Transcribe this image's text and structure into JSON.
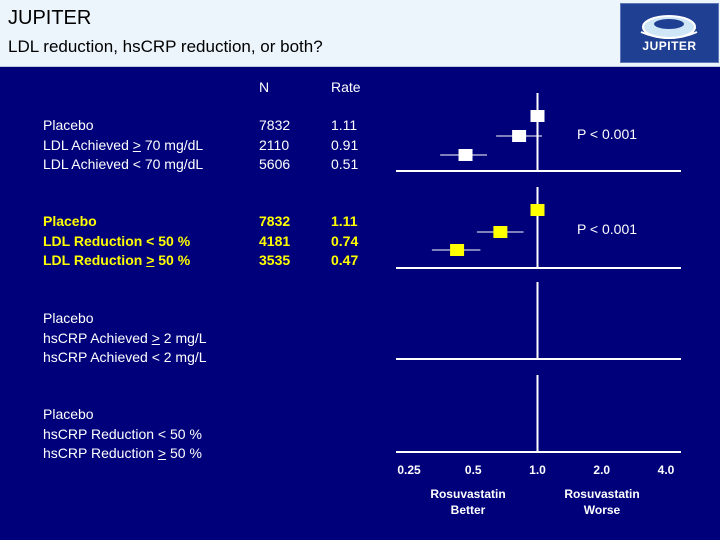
{
  "header": {
    "title": "JUPITER",
    "subtitle": "LDL reduction, hsCRP reduction, or both?",
    "logo_text": "JUPITER"
  },
  "columns": {
    "n": "N",
    "rate": "Rate"
  },
  "colors": {
    "background": "#00007a",
    "header": "#ecf5fb",
    "white_marker": "#ffffff",
    "yellow_marker": "#ffff00"
  },
  "groups": [
    {
      "color": "white",
      "labels": [
        {
          "pre": "Placebo",
          "sym": "",
          "post": ""
        },
        {
          "pre": "LDL Achieved ",
          "sym": ">",
          "post": " 70 mg/dL"
        },
        {
          "pre": "LDL Achieved < 70 mg/dL",
          "sym": "",
          "post": ""
        }
      ],
      "n": [
        "7832",
        "2110",
        "5606"
      ],
      "rate": [
        "1.11",
        "0.91",
        "0.51"
      ],
      "p_value": "P < 0.001"
    },
    {
      "color": "yellow",
      "labels": [
        {
          "pre": "Placebo",
          "sym": "",
          "post": ""
        },
        {
          "pre": "LDL Reduction < 50 %",
          "sym": "",
          "post": ""
        },
        {
          "pre": "LDL Reduction ",
          "sym": ">",
          "post": " 50 %"
        }
      ],
      "n": [
        "7832",
        "4181",
        "3535"
      ],
      "rate": [
        "1.11",
        "0.74",
        "0.47"
      ],
      "p_value": "P < 0.001"
    },
    {
      "color": "white",
      "labels": [
        {
          "pre": "Placebo",
          "sym": "",
          "post": ""
        },
        {
          "pre": "hsCRP Achieved ",
          "sym": ">",
          "post": " 2 mg/L"
        },
        {
          "pre": "hsCRP Achieved < 2 mg/L",
          "sym": "",
          "post": ""
        }
      ]
    },
    {
      "color": "white",
      "labels": [
        {
          "pre": "Placebo",
          "sym": "",
          "post": ""
        },
        {
          "pre": "hsCRP Reduction < 50 %",
          "sym": "",
          "post": ""
        },
        {
          "pre": "hsCRP Reduction ",
          "sym": ">",
          "post": " 50 %"
        }
      ]
    }
  ],
  "chart_data": {
    "type": "scatter",
    "x_scale": "log",
    "x_ticks": [
      "0.25",
      "0.5",
      "1.0",
      "2.0",
      "4.0"
    ],
    "xlim": [
      0.25,
      4.0
    ],
    "reference_line": 1.0,
    "panels": [
      {
        "color": "#ffffff",
        "points": [
          {
            "value": 1.0,
            "ci": [
              1.0,
              1.0
            ]
          },
          {
            "value": 0.82,
            "ci": [
              0.64,
              1.05
            ]
          },
          {
            "value": 0.46,
            "ci": [
              0.35,
              0.58
            ]
          }
        ]
      },
      {
        "color": "#ffff00",
        "points": [
          {
            "value": 1.0,
            "ci": [
              1.0,
              1.0
            ]
          },
          {
            "value": 0.67,
            "ci": [
              0.52,
              0.86
            ]
          },
          {
            "value": 0.42,
            "ci": [
              0.32,
              0.54
            ]
          }
        ]
      },
      {
        "color": "#ffffff",
        "points": []
      },
      {
        "color": "#ffffff",
        "points": []
      }
    ],
    "notes": {
      "better": "Rosuvastatin\nBetter",
      "worse": "Rosuvastatin\nWorse"
    }
  }
}
